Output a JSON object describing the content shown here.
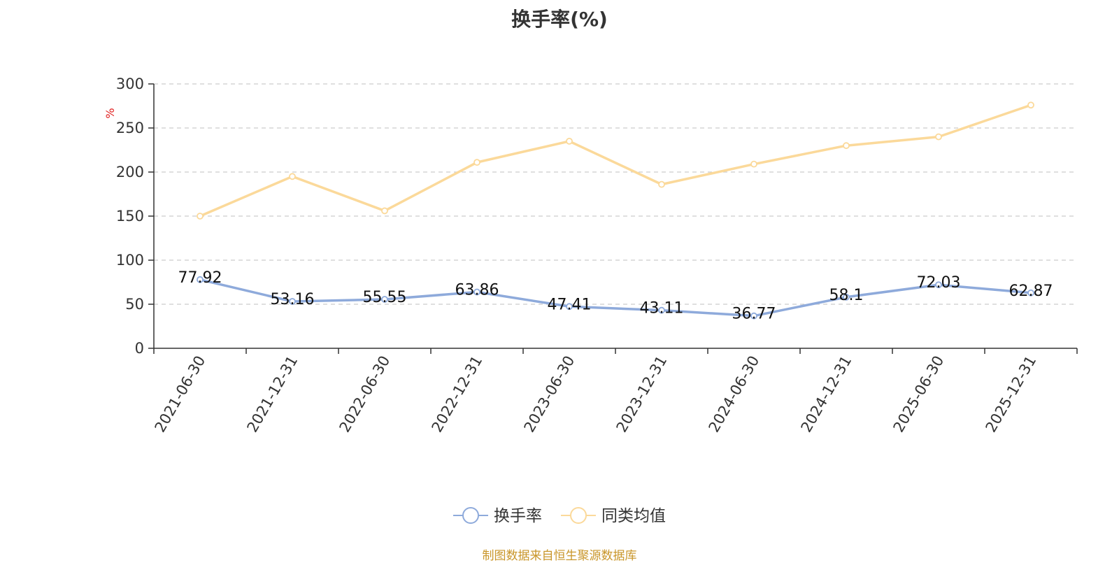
{
  "title": "换手率(%)",
  "source": "制图数据来自恒生聚源数据库",
  "chart_data": {
    "type": "line",
    "title": "换手率(%)",
    "ylabel": "%",
    "xlabel": "",
    "ylim": [
      0,
      300
    ],
    "yticks": [
      0,
      50,
      100,
      150,
      200,
      250,
      300
    ],
    "grid": true,
    "legend_position": "bottom-center",
    "categories": [
      "2021-06-30",
      "2021-12-31",
      "2022-06-30",
      "2022-12-31",
      "2023-06-30",
      "2023-12-31",
      "2024-06-30",
      "2024-12-31",
      "2025-06-30",
      "2025-12-31"
    ],
    "series": [
      {
        "name": "换手率",
        "color": "#8eaadb",
        "values": [
          77.92,
          53.16,
          55.55,
          63.86,
          47.41,
          43.11,
          36.77,
          58.1,
          72.03,
          62.87
        ],
        "labels": [
          "77.92",
          "53.16",
          "55.55",
          "63.86",
          "47.41",
          "43.11",
          "36.77",
          "58.1",
          "72.03",
          "62.87"
        ]
      },
      {
        "name": "同类均值",
        "color": "#fbd99a",
        "values": [
          150,
          195,
          156,
          211,
          235,
          186,
          209,
          230,
          240,
          276
        ]
      }
    ]
  }
}
